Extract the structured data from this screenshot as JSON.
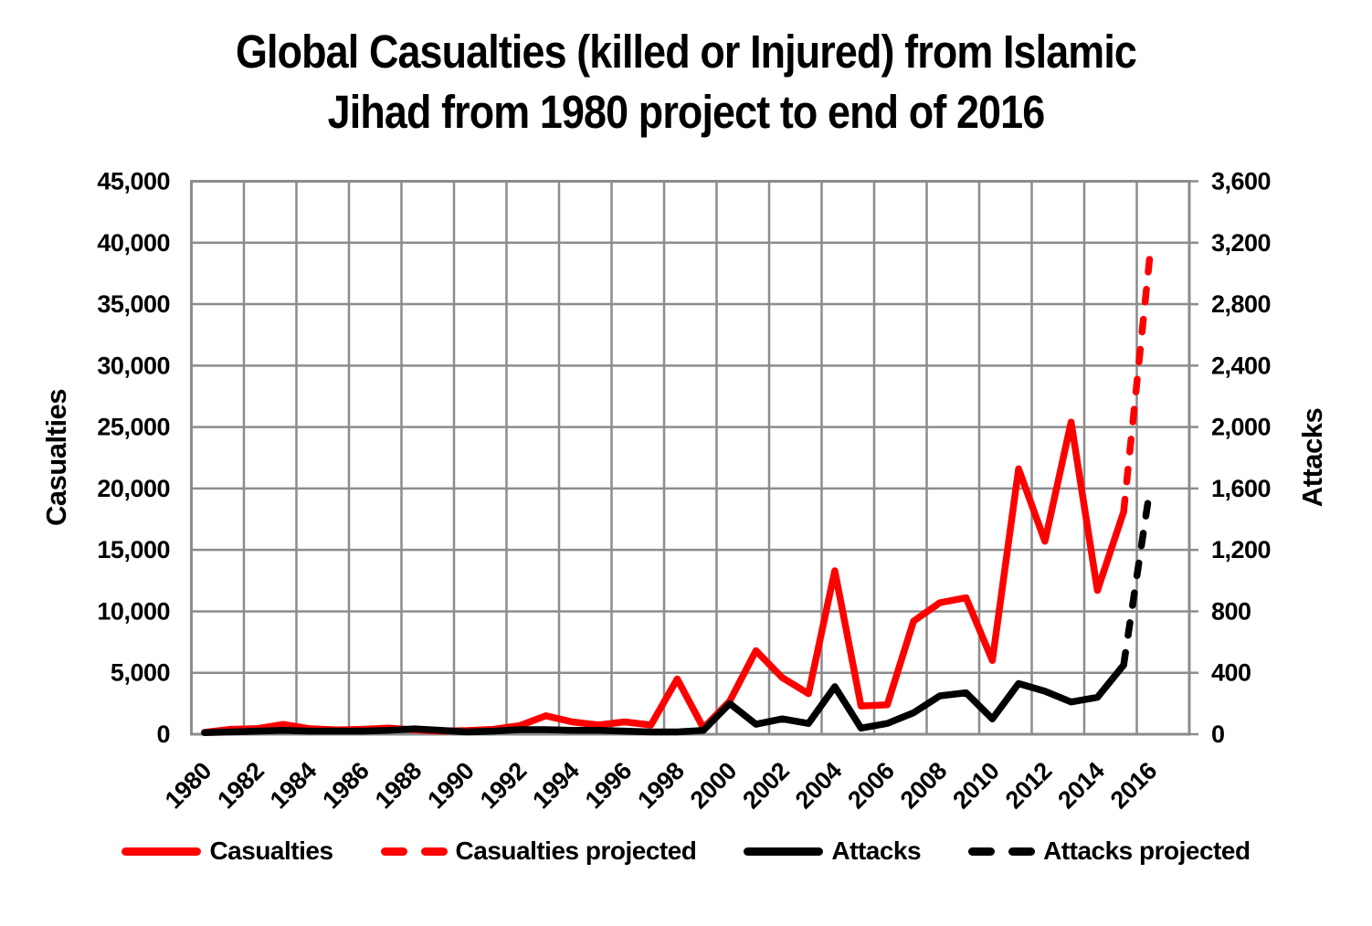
{
  "title": {
    "line1": "Global Casualties (killed or Injured) from Islamic",
    "line2": "Jihad from 1980 project to end of 2016"
  },
  "chart_data": {
    "type": "line",
    "x": [
      1980,
      1981,
      1982,
      1983,
      1984,
      1985,
      1986,
      1987,
      1988,
      1989,
      1990,
      1991,
      1992,
      1993,
      1994,
      1995,
      1996,
      1997,
      1998,
      1999,
      2000,
      2001,
      2002,
      2003,
      2004,
      2005,
      2006,
      2007,
      2008,
      2009,
      2010,
      2011,
      2012,
      2013,
      2014,
      2015,
      2016
    ],
    "series": [
      {
        "name": "Casualties",
        "axis": "left",
        "color": "#FF0000",
        "style": "solid",
        "values": [
          150,
          400,
          450,
          800,
          450,
          350,
          400,
          500,
          350,
          250,
          300,
          400,
          700,
          1500,
          1000,
          750,
          1000,
          750,
          4500,
          500,
          2700,
          6800,
          4600,
          3300,
          13300,
          2300,
          2400,
          9200,
          10700,
          11100,
          6000,
          21600,
          15700,
          25400,
          11700,
          18100,
          null
        ]
      },
      {
        "name": "Casualties projected",
        "axis": "left",
        "color": "#FF0000",
        "style": "dashed",
        "values": [
          null,
          null,
          null,
          null,
          null,
          null,
          null,
          null,
          null,
          null,
          null,
          null,
          null,
          null,
          null,
          null,
          null,
          null,
          null,
          null,
          null,
          null,
          null,
          null,
          null,
          null,
          null,
          null,
          null,
          null,
          null,
          null,
          null,
          null,
          null,
          18100,
          39000
        ]
      },
      {
        "name": "Attacks",
        "axis": "right",
        "color": "#000000",
        "style": "solid",
        "values": [
          10,
          15,
          20,
          25,
          20,
          20,
          20,
          25,
          35,
          25,
          15,
          20,
          30,
          30,
          25,
          25,
          20,
          15,
          15,
          25,
          200,
          65,
          100,
          70,
          310,
          40,
          70,
          140,
          250,
          270,
          100,
          330,
          280,
          210,
          240,
          450,
          null
        ]
      },
      {
        "name": "Attacks projected",
        "axis": "right",
        "color": "#000000",
        "style": "dashed",
        "values": [
          null,
          null,
          null,
          null,
          null,
          null,
          null,
          null,
          null,
          null,
          null,
          null,
          null,
          null,
          null,
          null,
          null,
          null,
          null,
          null,
          null,
          null,
          null,
          null,
          null,
          null,
          null,
          null,
          null,
          null,
          null,
          null,
          null,
          null,
          null,
          450,
          1600
        ]
      }
    ],
    "left_axis": {
      "title": "Casualties",
      "min": 0,
      "max": 45000,
      "step": 5000,
      "tick_labels": [
        "0",
        "5,000",
        "10,000",
        "15,000",
        "20,000",
        "25,000",
        "30,000",
        "35,000",
        "40,000",
        "45,000"
      ]
    },
    "right_axis": {
      "title": "Attacks",
      "min": 0,
      "max": 3600,
      "step": 400,
      "tick_labels": [
        "0",
        "400",
        "800",
        "1,200",
        "1,600",
        "2,000",
        "2,400",
        "2,800",
        "3,200",
        "3,600"
      ]
    },
    "x_axis": {
      "tick_labels": [
        "1980",
        "1982",
        "1984",
        "1986",
        "1988",
        "1990",
        "1992",
        "1994",
        "1996",
        "1998",
        "2000",
        "2002",
        "2004",
        "2006",
        "2008",
        "2010",
        "2012",
        "2014",
        "2016"
      ]
    },
    "grid": true,
    "legend_position": "bottom",
    "background": "#FFFFFF",
    "gridline_color": "#8C8C8C",
    "text_color": "#000000"
  },
  "legend": {
    "items": [
      {
        "label": "Casualties",
        "color": "#FF0000",
        "style": "solid"
      },
      {
        "label": "Casualties projected",
        "color": "#FF0000",
        "style": "dashed"
      },
      {
        "label": "Attacks",
        "color": "#000000",
        "style": "solid"
      },
      {
        "label": "Attacks projected",
        "color": "#000000",
        "style": "dashed"
      }
    ]
  }
}
